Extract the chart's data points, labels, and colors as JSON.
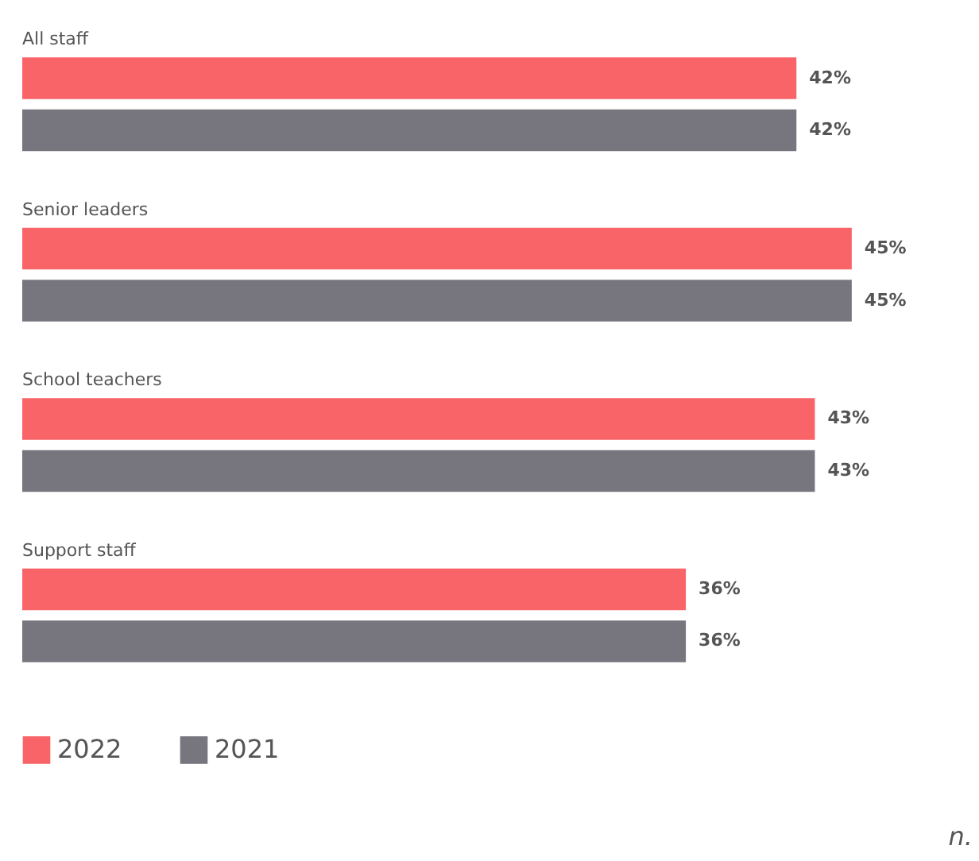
{
  "chart_data": {
    "type": "bar",
    "orientation": "horizontal",
    "categories": [
      "All staff",
      "Senior leaders",
      "School teachers",
      "Support staff"
    ],
    "series": [
      {
        "name": "2022",
        "color": "#f96468",
        "values": [
          42,
          45,
          43,
          36
        ],
        "value_labels": [
          "42%",
          "45%",
          "43%",
          "36%"
        ]
      },
      {
        "name": "2021",
        "color": "#77767f",
        "values": [
          42,
          45,
          43,
          36
        ],
        "value_labels": [
          "42%",
          "45%",
          "43%",
          "36%"
        ]
      }
    ],
    "legend": "bottom left",
    "annotations": [
      "n."
    ]
  }
}
